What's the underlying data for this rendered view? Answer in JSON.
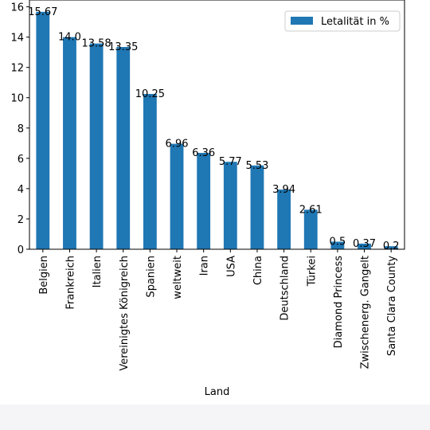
{
  "chart_data": {
    "type": "bar",
    "categories": [
      "Belgien",
      "Frankreich",
      "Italien",
      "Vereinigtes Königreich",
      "Spanien",
      "weltweit",
      "Iran",
      "USA",
      "China",
      "Deutschland",
      "Türkei",
      "Diamond Princess",
      "Zwischenerg. Gangelt",
      "Santa Clara County"
    ],
    "series": [
      {
        "name": "Letalität in %",
        "values": [
          15.67,
          14.0,
          13.58,
          13.35,
          10.25,
          6.96,
          6.36,
          5.77,
          5.53,
          3.94,
          2.61,
          0.5,
          0.37,
          0.2
        ],
        "labels": [
          "15.67",
          "14.0",
          "13.58",
          "13.35",
          "10.25",
          "6.96",
          "6.36",
          "5.77",
          "5.53",
          "3.94",
          "2.61",
          "0.5",
          "0.37",
          "0.2"
        ],
        "color": "#1f77b4"
      }
    ],
    "xlabel": "Land",
    "ylabel": "",
    "ylim": [
      0,
      16.45
    ],
    "yticks": [
      0,
      2,
      4,
      6,
      8,
      10,
      12,
      14,
      16
    ],
    "legend_position": "top-right",
    "grid": false
  }
}
